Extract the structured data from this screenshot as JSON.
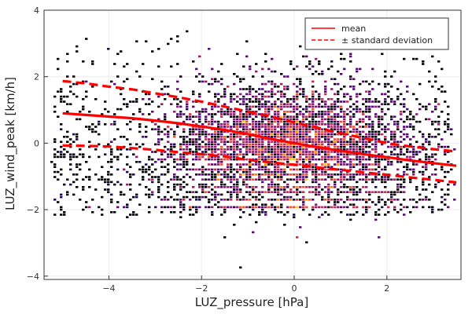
{
  "chart_data": {
    "type": "heatmap",
    "title": "",
    "xlabel": "LUZ_pressure [hPa]",
    "ylabel": "LUZ_wind_peak [km/h]",
    "xlim": [
      -5.4,
      3.6
    ],
    "ylim": [
      -4.1,
      4.0
    ],
    "xticks": [
      -4,
      -2,
      0,
      2
    ],
    "yticks": [
      -4,
      -2,
      0,
      2,
      4
    ],
    "grid": true,
    "legend_position": "top-right",
    "colormap": [
      "#000004",
      "#1f0c48",
      "#550f6d",
      "#88226a",
      "#ba3655",
      "#e35933",
      "#f98c0a",
      "#f9c932"
    ],
    "density": {
      "x_center": -0.1,
      "y_center": -0.15,
      "x_spread": 1.3,
      "y_spread": 0.95,
      "band_y_values": [
        -0.5,
        -0.65,
        -0.8,
        -0.95,
        -1.1,
        -1.3,
        -1.5,
        -1.7,
        -1.9
      ]
    },
    "series": [
      {
        "name": "mean",
        "style": "solid",
        "color": "#ff0000",
        "x": [
          -5,
          -4.5,
          -4,
          -3.5,
          -3,
          -2.5,
          -2,
          -1.5,
          -1,
          -0.5,
          0,
          0.5,
          1,
          1.5,
          2,
          2.5,
          3,
          3.5
        ],
        "y": [
          0.9,
          0.85,
          0.8,
          0.75,
          0.68,
          0.6,
          0.5,
          0.4,
          0.27,
          0.13,
          0.0,
          -0.12,
          -0.23,
          -0.33,
          -0.42,
          -0.52,
          -0.6,
          -0.68
        ]
      },
      {
        "name": "± standard deviation",
        "style": "dashed",
        "color": "#ff0000",
        "x": [
          -5,
          -4.5,
          -4,
          -3.5,
          -3,
          -2.5,
          -2,
          -1.5,
          -1,
          -0.5,
          0,
          0.5,
          1,
          1.5,
          2,
          2.5,
          3,
          3.5
        ],
        "y": [
          1.87,
          1.8,
          1.7,
          1.62,
          1.5,
          1.38,
          1.25,
          1.1,
          0.95,
          0.8,
          0.62,
          0.47,
          0.3,
          0.15,
          0.0,
          -0.1,
          -0.18,
          -0.25
        ]
      },
      {
        "name": "",
        "style": "dashed",
        "color": "#ff0000",
        "x": [
          -5,
          -4.5,
          -4,
          -3.5,
          -3,
          -2.5,
          -2,
          -1.5,
          -1,
          -0.5,
          0,
          0.5,
          1,
          1.5,
          2,
          2.5,
          3,
          3.5
        ],
        "y": [
          -0.07,
          -0.08,
          -0.1,
          -0.15,
          -0.2,
          -0.27,
          -0.33,
          -0.4,
          -0.5,
          -0.58,
          -0.65,
          -0.73,
          -0.8,
          -0.88,
          -0.95,
          -1.03,
          -1.1,
          -1.18
        ]
      }
    ],
    "legend": [
      {
        "label": "mean",
        "style": "solid"
      },
      {
        "label": "± standard deviation",
        "style": "dashed"
      }
    ]
  }
}
